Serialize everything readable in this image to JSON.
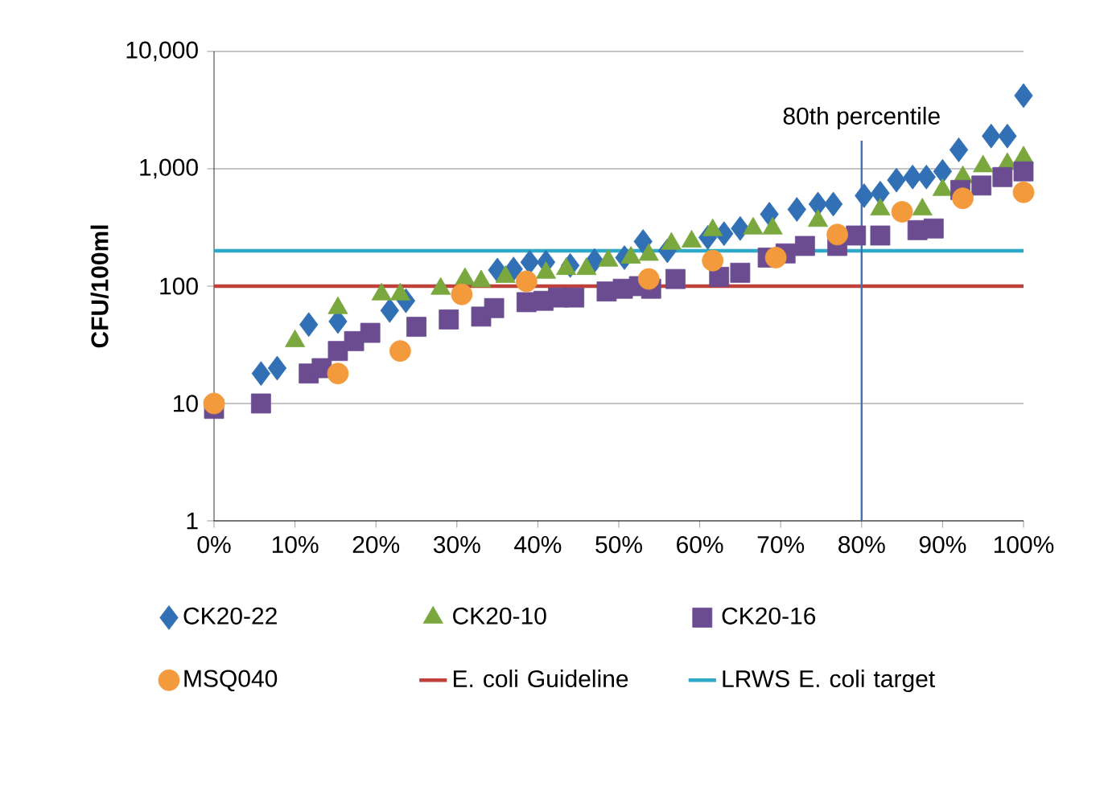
{
  "chart_data": {
    "type": "scatter",
    "ylabel": "CFU/100ml",
    "log": "y",
    "grid": "y",
    "legend": "bottom",
    "xlim": [
      0,
      100
    ],
    "xticks": [
      {
        "value": 0,
        "label": "0%"
      },
      {
        "value": 10,
        "label": "10%"
      },
      {
        "value": 20,
        "label": "20%"
      },
      {
        "value": 30,
        "label": "30%"
      },
      {
        "value": 40,
        "label": "40%"
      },
      {
        "value": 50,
        "label": "50%"
      },
      {
        "value": 60,
        "label": "60%"
      },
      {
        "value": 70,
        "label": "70%"
      },
      {
        "value": 80,
        "label": "80%"
      },
      {
        "value": 90,
        "label": "90%"
      },
      {
        "value": 100,
        "label": "100%"
      }
    ],
    "ylim": [
      1,
      10000
    ],
    "yticks": [
      1,
      10,
      100,
      {
        "value": 1000,
        "label": "1,000"
      },
      {
        "value": 10000,
        "label": "10,000"
      }
    ],
    "ref_lines": [
      {
        "axis": "y",
        "value": 100,
        "label": "E. coli Guideline",
        "color": "#c0403a"
      },
      {
        "axis": "y",
        "value": 200,
        "label": "LRWS E. coli target",
        "color": "#2eaac8"
      },
      {
        "axis": "x",
        "value": 80,
        "label": "80th percentile",
        "color": "#3f72b5"
      }
    ],
    "series": [
      {
        "name": "CK20-22",
        "color": "#3170b5",
        "marker": "diamond",
        "x": [
          5.8,
          7.8,
          11.7,
          15.3,
          21.7,
          23.7,
          35,
          37,
          39,
          41,
          44,
          47,
          50.7,
          53,
          56,
          61,
          63,
          65,
          68.6,
          72,
          74.6,
          76.5,
          80.3,
          82.3,
          84.3,
          86.3,
          88,
          90,
          92,
          96,
          98,
          100
        ],
        "values": [
          18,
          20,
          47,
          50,
          62,
          75,
          137,
          140,
          160,
          160,
          150,
          165,
          175,
          240,
          200,
          260,
          280,
          310,
          410,
          450,
          500,
          500,
          590,
          620,
          800,
          850,
          850,
          950,
          1450,
          1900,
          1900,
          4200
        ]
      },
      {
        "name": "CK20-10",
        "color": "#7aa83e",
        "marker": "triangle",
        "x": [
          10,
          15.3,
          20.7,
          23,
          28,
          31,
          33,
          36,
          41,
          43.5,
          46,
          48.7,
          51.5,
          53.7,
          56.5,
          59,
          61.6,
          66.6,
          69,
          74.6,
          82.3,
          87.5,
          90,
          92.5,
          95,
          98,
          100
        ],
        "values": [
          34,
          65,
          85,
          85,
          95,
          115,
          110,
          120,
          130,
          140,
          140,
          165,
          175,
          185,
          230,
          240,
          300,
          310,
          310,
          360,
          450,
          450,
          660,
          850,
          1050,
          1100,
          1250
        ]
      },
      {
        "name": "CK20-16",
        "color": "#6b4c91",
        "marker": "square",
        "x": [
          0,
          5.8,
          11.7,
          13.3,
          15.3,
          17.3,
          19.3,
          25,
          29,
          33,
          34.6,
          38.6,
          40.7,
          42.5,
          44.5,
          48.5,
          50.5,
          52.5,
          54,
          57,
          62.4,
          65,
          68.4,
          70.6,
          73,
          77,
          79.3,
          82.3,
          86.9,
          88.9,
          92.2,
          94.8,
          97.4,
          100
        ],
        "values": [
          9,
          10,
          18,
          20,
          28,
          34,
          40,
          45,
          52,
          55,
          65,
          73,
          75,
          80,
          80,
          90,
          95,
          100,
          95,
          115,
          120,
          130,
          175,
          190,
          220,
          220,
          270,
          270,
          300,
          310,
          660,
          720,
          850,
          950
        ]
      },
      {
        "name": "MSQ040",
        "color": "#f39a3c",
        "marker": "circle",
        "x": [
          0,
          15.3,
          23,
          30.6,
          38.6,
          53.7,
          61.6,
          69.4,
          77,
          85,
          92.5,
          100
        ],
        "values": [
          10,
          18,
          28,
          85,
          110,
          115,
          165,
          175,
          275,
          430,
          560,
          630
        ]
      }
    ]
  }
}
